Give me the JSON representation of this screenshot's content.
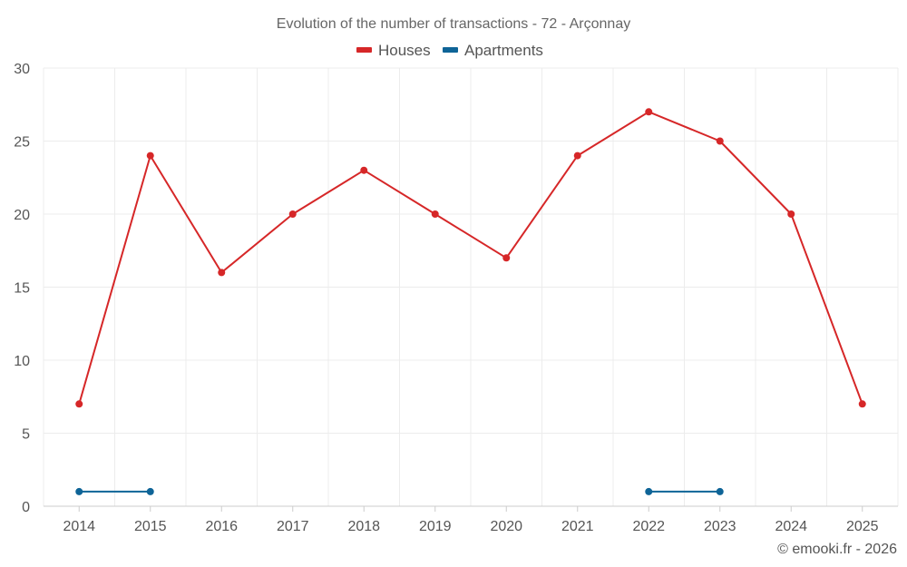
{
  "chart_data": {
    "type": "line",
    "title": "Evolution of the number of transactions - 72 - Arçonnay",
    "categories": [
      "2014",
      "2015",
      "2016",
      "2017",
      "2018",
      "2019",
      "2020",
      "2021",
      "2022",
      "2023",
      "2024",
      "2025"
    ],
    "ylim": [
      0,
      30
    ],
    "yticks": [
      0,
      5,
      10,
      15,
      20,
      25,
      30
    ],
    "grid": true,
    "legend_position": "top-center",
    "series": [
      {
        "name": "Houses",
        "color": "#d62728",
        "values": [
          7,
          24,
          16,
          20,
          23,
          20,
          17,
          24,
          27,
          25,
          20,
          7
        ]
      },
      {
        "name": "Apartments",
        "color": "#0e6497",
        "values": [
          1,
          1,
          null,
          null,
          null,
          null,
          null,
          null,
          1,
          1,
          null,
          null
        ]
      }
    ]
  },
  "credit": "© emooki.fr - 2026"
}
